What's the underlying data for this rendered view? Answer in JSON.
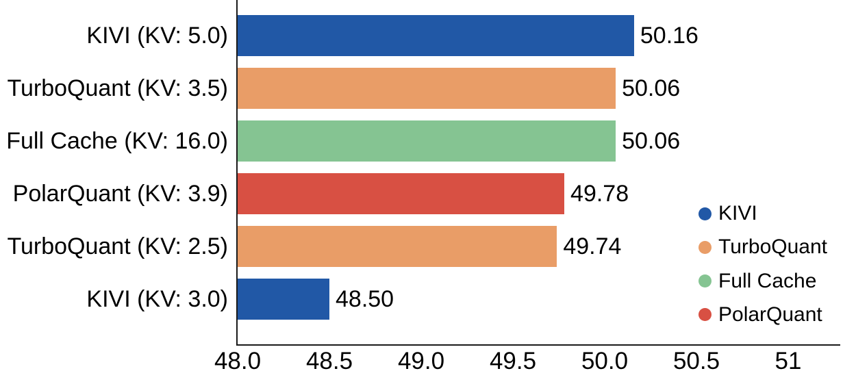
{
  "chart_data": {
    "type": "bar",
    "orientation": "horizontal",
    "title": "",
    "xlabel": "",
    "ylabel": "",
    "categories": [
      "KIVI (KV: 5.0)",
      "TurboQuant (KV: 3.5)",
      "Full Cache (KV: 16.0)",
      "PolarQuant (KV: 3.9)",
      "TurboQuant (KV: 2.5)",
      "KIVI (KV: 3.0)"
    ],
    "values": [
      50.16,
      50.06,
      50.06,
      49.78,
      49.74,
      48.5
    ],
    "value_labels": [
      "50.16",
      "50.06",
      "50.06",
      "49.78",
      "49.74",
      "48.50"
    ],
    "bar_series": [
      "KIVI",
      "TurboQuant",
      "Full Cache",
      "PolarQuant",
      "TurboQuant",
      "KIVI"
    ],
    "bar_colors": [
      "#2158A6",
      "#E99D67",
      "#85C492",
      "#D85043",
      "#E99D67",
      "#2158A6"
    ],
    "xlim": [
      48.0,
      51.28
    ],
    "x_ticks": [
      48.0,
      48.5,
      49.0,
      49.5,
      50.0,
      50.5,
      51.0
    ],
    "x_tick_labels": [
      "48.0",
      "48.5",
      "49.0",
      "49.5",
      "50.0",
      "50.5",
      "51"
    ],
    "grid": false,
    "legend": {
      "position": "right-middle",
      "marker": "circle",
      "entries": [
        {
          "label": "KIVI",
          "color": "#2158A6"
        },
        {
          "label": "TurboQuant",
          "color": "#E99D67"
        },
        {
          "label": "Full Cache",
          "color": "#85C492"
        },
        {
          "label": "PolarQuant",
          "color": "#D85043"
        }
      ]
    },
    "colors": {
      "axis_spine": "#1a1a1a",
      "text": "#000000",
      "background": "#ffffff"
    }
  }
}
